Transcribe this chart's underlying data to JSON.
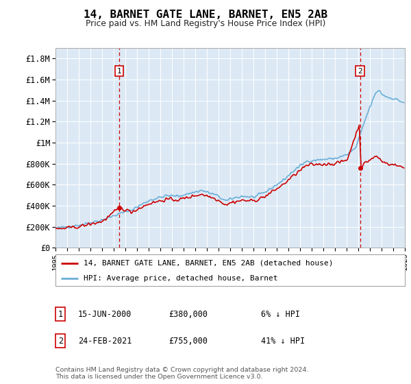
{
  "title": "14, BARNET GATE LANE, BARNET, EN5 2AB",
  "subtitle": "Price paid vs. HM Land Registry's House Price Index (HPI)",
  "plot_bg_color": "#dce9f5",
  "red_line_label": "14, BARNET GATE LANE, BARNET, EN5 2AB (detached house)",
  "blue_line_label": "HPI: Average price, detached house, Barnet",
  "annotation1_date": "15-JUN-2000",
  "annotation1_price": "£380,000",
  "annotation1_hpi": "6% ↓ HPI",
  "annotation2_date": "24-FEB-2021",
  "annotation2_price": "£755,000",
  "annotation2_hpi": "41% ↓ HPI",
  "footer": "Contains HM Land Registry data © Crown copyright and database right 2024.\nThis data is licensed under the Open Government Licence v3.0.",
  "ylim": [
    0,
    1900000
  ],
  "yticks": [
    0,
    200000,
    400000,
    600000,
    800000,
    1000000,
    1200000,
    1400000,
    1600000,
    1800000
  ],
  "ytick_labels": [
    "£0",
    "£200K",
    "£400K",
    "£600K",
    "£800K",
    "£1M",
    "£1.2M",
    "£1.4M",
    "£1.6M",
    "£1.8M"
  ],
  "sale1_x": 2000.46,
  "sale1_y": 380000,
  "sale2_x": 2021.15,
  "sale2_y": 755000,
  "hpi_color": "#6aaed6",
  "price_color": "#cc0000",
  "vline_color": "#cc0000",
  "xmin": 1995,
  "xmax": 2025
}
